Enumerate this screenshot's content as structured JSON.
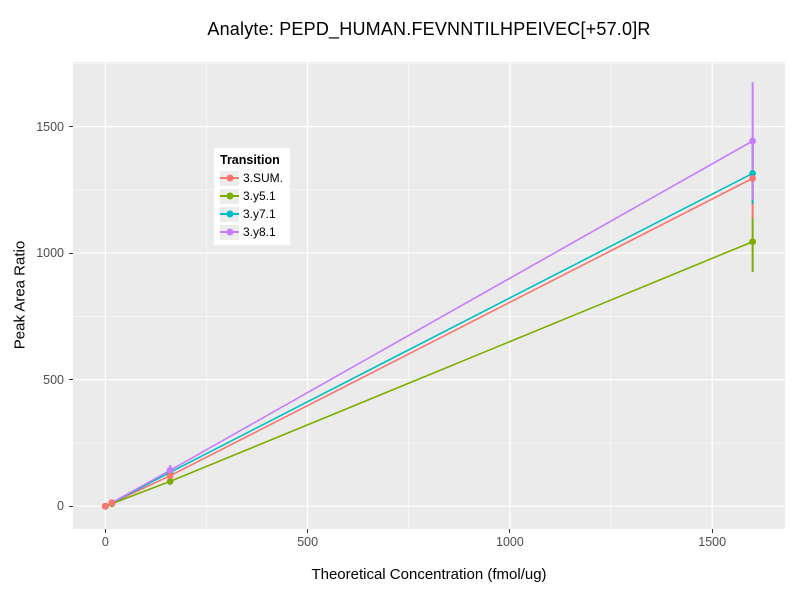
{
  "title": "Analyte: PEPD_HUMAN.FEVNNTILHPEIVEC[+57.0]R",
  "axes": {
    "x_label": "Theoretical Concentration (fmol/ug)",
    "y_label": "Peak Area Ratio"
  },
  "legend": {
    "title": "Transition",
    "items": [
      {
        "label": "3.SUM.",
        "color": "#F8766D"
      },
      {
        "label": "3.y5.1",
        "color": "#7CAE00"
      },
      {
        "label": "3.y7.1",
        "color": "#00BFC4"
      },
      {
        "label": "3.y8.1",
        "color": "#C77CFF"
      }
    ]
  },
  "colors": {
    "panel_background": "#EBEBEB",
    "gridline": "#FFFFFF",
    "tick_text": "#4D4D4D",
    "tick_mark": "#333333"
  },
  "chart_data": {
    "type": "line",
    "title": "Analyte: PEPD_HUMAN.FEVNNTILHPEIVEC[+57.0]R",
    "xlabel": "Theoretical Concentration (fmol/ug)",
    "ylabel": "Peak Area Ratio",
    "xlim": [
      -80,
      1680
    ],
    "ylim": [
      -90,
      1755
    ],
    "x_major": [
      0,
      500,
      1000,
      1500
    ],
    "y_major": [
      0,
      500,
      1000,
      1500
    ],
    "x_minor": [
      250,
      750,
      1250
    ],
    "y_minor": [
      250,
      750,
      1250,
      1750
    ],
    "grid": true,
    "legend_position": "top-left-inside",
    "x": [
      0,
      16,
      160,
      1600
    ],
    "series": [
      {
        "name": "3.SUM.",
        "color": "#F8766D",
        "values": [
          0,
          13,
          120,
          1295
        ],
        "error_low": [
          null,
          null,
          null,
          1130
        ],
        "error_high": [
          null,
          null,
          null,
          1460
        ]
      },
      {
        "name": "3.y5.1",
        "color": "#7CAE00",
        "values": [
          0,
          10,
          98,
          1045
        ],
        "error_low": [
          null,
          null,
          null,
          925
        ],
        "error_high": [
          null,
          null,
          null,
          1135
        ]
      },
      {
        "name": "3.y7.1",
        "color": "#00BFC4",
        "values": [
          0,
          13,
          134,
          1315
        ],
        "error_low": [
          null,
          null,
          null,
          1195
        ],
        "error_high": [
          null,
          null,
          null,
          1430
        ]
      },
      {
        "name": "3.y8.1",
        "color": "#C77CFF",
        "values": [
          0,
          14,
          142,
          1443
        ],
        "error_low": [
          null,
          null,
          119,
          1210
        ],
        "error_high": [
          null,
          null,
          163,
          1675
        ]
      }
    ]
  }
}
